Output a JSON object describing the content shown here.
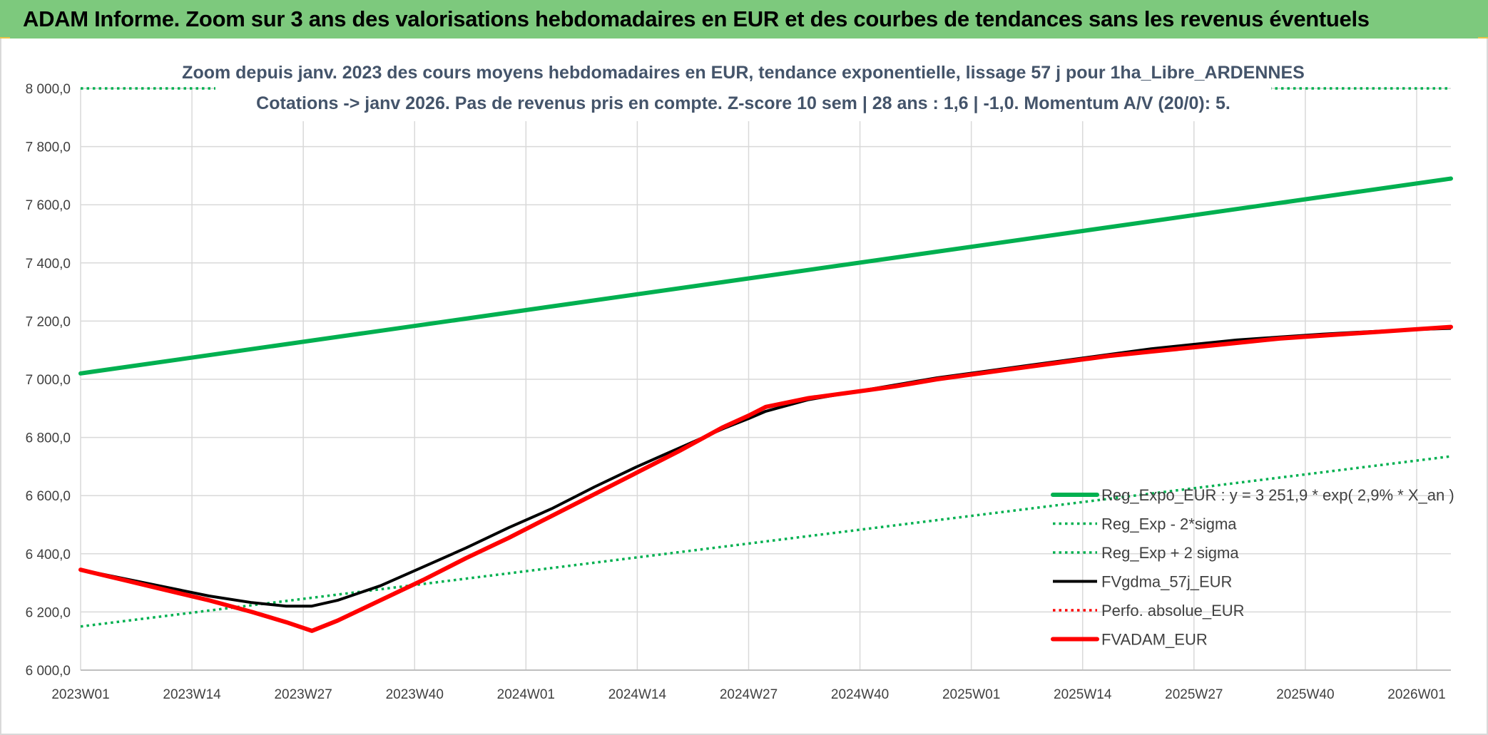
{
  "header": {
    "title": "ADAM Informe. Zoom sur 3 ans des valorisations hebdomadaires en EUR et des courbes de tendances sans les revenus éventuels"
  },
  "colors": {
    "header_bg": "#7dc97d",
    "trend": "#00b050",
    "fv_gdma": "#000000",
    "fv_adam": "#ff0000",
    "grid": "#d9d9d9",
    "text": "#404040"
  },
  "chart_data": {
    "type": "line",
    "title_line1": "Zoom depuis janv. 2023 des cours moyens hebdomadaires en EUR, tendance exponentielle, lissage 57 j pour 1ha_Libre_ARDENNES",
    "title_line2": "Cotations -> janv 2026. Pas de revenus pris en compte. Z-score 10 sem | 28 ans : 1,6 | -1,0. Momentum A/V (20/0): 5.",
    "x_tick_labels": [
      "2023W01",
      "2023W14",
      "2023W27",
      "2023W40",
      "2024W01",
      "2024W14",
      "2024W27",
      "2024W40",
      "2025W01",
      "2025W14",
      "2025W27",
      "2025W40",
      "2026W01"
    ],
    "x_tick_weeks": [
      0,
      13,
      26,
      39,
      52,
      65,
      78,
      91,
      104,
      117,
      130,
      143,
      156
    ],
    "xlim": [
      0,
      160
    ],
    "ylim": [
      6000,
      8000
    ],
    "y_tick_labels": [
      "6 000,0",
      "6 200,0",
      "6 400,0",
      "6 600,0",
      "6 800,0",
      "7 000,0",
      "7 200,0",
      "7 400,0",
      "7 600,0",
      "7 800,0",
      "8 000,0"
    ],
    "y_ticks": [
      6000,
      6200,
      6400,
      6600,
      6800,
      7000,
      7200,
      7400,
      7600,
      7800,
      8000
    ],
    "series": [
      {
        "name": "Reg_Expo_EUR : y = 3 251,9 * exp( 2,9% *  X_an )",
        "key": "reg",
        "style": "solid-thick",
        "color": "#00b050",
        "x": [
          0,
          160
        ],
        "y": [
          7020,
          7690
        ]
      },
      {
        "name": "Reg_Exp - 2*sigma",
        "key": "minus",
        "style": "dotted",
        "color": "#00b050",
        "x": [
          0,
          160
        ],
        "y": [
          6150,
          6735
        ]
      },
      {
        "name": "Reg_Exp + 2 sigma",
        "key": "plus",
        "style": "dotted",
        "color": "#00b050",
        "x": [
          0,
          160
        ],
        "y": [
          8000,
          8000
        ]
      },
      {
        "name": "FVgdma_57j_EUR",
        "key": "gdma",
        "style": "solid",
        "color": "#000000",
        "x": [
          0,
          5,
          10,
          15,
          20,
          24,
          27,
          30,
          35,
          40,
          45,
          50,
          55,
          60,
          65,
          70,
          75,
          78,
          80,
          85,
          90,
          95,
          100,
          105,
          110,
          115,
          120,
          125,
          130,
          135,
          140,
          145,
          150,
          155,
          160
        ],
        "y": [
          6345,
          6315,
          6285,
          6255,
          6232,
          6220,
          6220,
          6240,
          6290,
          6355,
          6420,
          6490,
          6555,
          6630,
          6700,
          6765,
          6830,
          6865,
          6890,
          6930,
          6955,
          6980,
          7005,
          7025,
          7045,
          7065,
          7085,
          7105,
          7120,
          7135,
          7145,
          7155,
          7163,
          7170,
          7175
        ]
      },
      {
        "name": "Perfo. absolue_EUR",
        "key": "perfo",
        "style": "dotted",
        "color": "#ff0000",
        "x": [],
        "y": []
      },
      {
        "name": "FVADAM_EUR",
        "key": "adam",
        "style": "solid-thick",
        "color": "#ff0000",
        "x": [
          0,
          5,
          10,
          15,
          20,
          24,
          26,
          27,
          30,
          35,
          40,
          45,
          50,
          55,
          60,
          65,
          70,
          75,
          78,
          80,
          85,
          90,
          95,
          100,
          105,
          110,
          115,
          120,
          125,
          130,
          135,
          140,
          145,
          150,
          155,
          160
        ],
        "y": [
          6345,
          6310,
          6275,
          6240,
          6200,
          6165,
          6145,
          6135,
          6170,
          6240,
          6310,
          6385,
          6455,
          6530,
          6605,
          6680,
          6755,
          6835,
          6875,
          6905,
          6935,
          6955,
          6975,
          7000,
          7020,
          7040,
          7060,
          7080,
          7095,
          7110,
          7125,
          7140,
          7150,
          7160,
          7170,
          7180
        ]
      }
    ],
    "legend_position": "bottom-right"
  }
}
